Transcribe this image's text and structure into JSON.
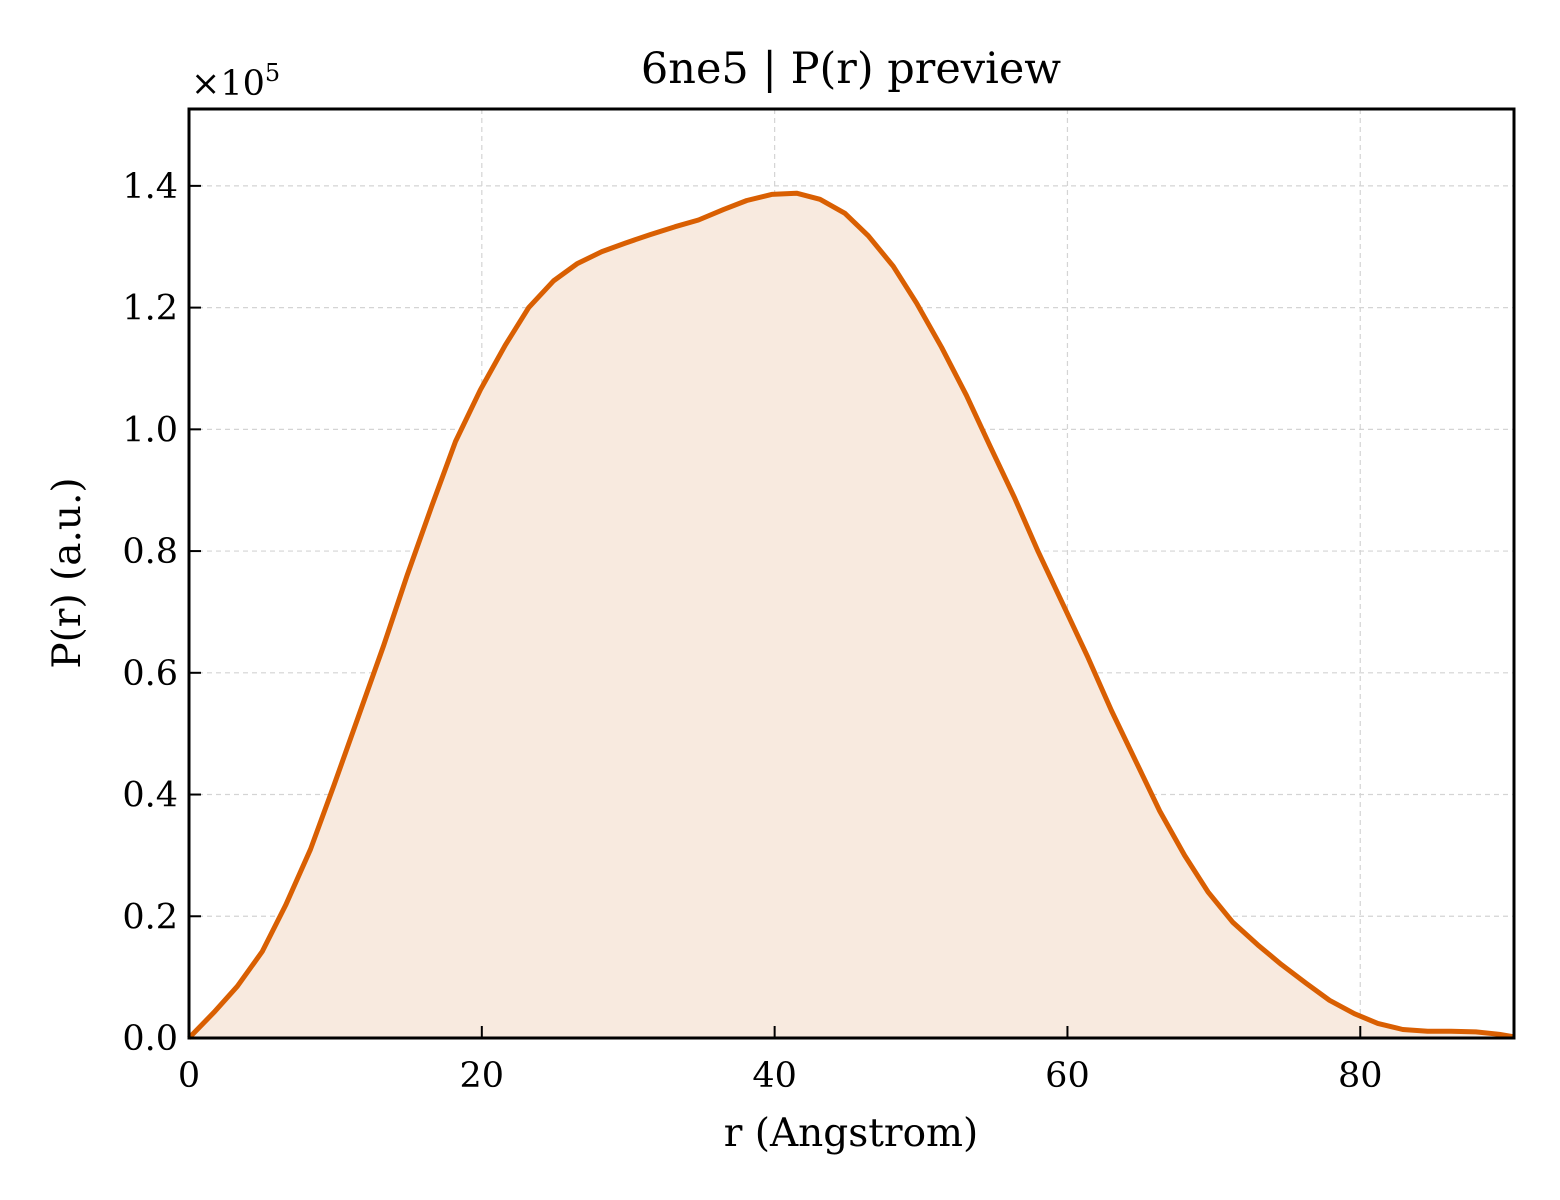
{
  "chart_data": {
    "type": "area",
    "title": "6ne5 | P(r) preview",
    "xlabel": "r (Angstrom)",
    "ylabel": "P(r) (a.u.)",
    "y_offset_label": "×10",
    "y_offset_exponent": "5",
    "xlim": [
      0,
      90.5
    ],
    "ylim": [
      0,
      1.5263
    ],
    "y_scale_factor": 100000,
    "xticks": [
      0,
      20,
      40,
      60,
      80
    ],
    "xtick_labels": [
      "0",
      "20",
      "40",
      "60",
      "80"
    ],
    "yticks": [
      0,
      0.2,
      0.4,
      0.6,
      0.8,
      1.0,
      1.2,
      1.4
    ],
    "ytick_labels": [
      "0.0",
      "0.2",
      "0.4",
      "0.6",
      "0.8",
      "1.0",
      "1.2",
      "1.4"
    ],
    "grid": true,
    "colors": {
      "line": "#d95f02",
      "fill": "#f8eadf",
      "grid": "#d4d4d4"
    },
    "series": [
      {
        "x": [
          0,
          1.7,
          3.3,
          5.0,
          6.6,
          8.3,
          9.9,
          11.6,
          13.3,
          14.9,
          16.6,
          18.2,
          19.9,
          21.6,
          23.2,
          24.9,
          26.5,
          28.2,
          29.8,
          31.5,
          33.2,
          34.8,
          36.5,
          38.1,
          39.8,
          41.5,
          43.1,
          44.8,
          46.4,
          48.1,
          49.7,
          51.4,
          53.1,
          54.7,
          56.4,
          58.0,
          59.7,
          61.4,
          63.0,
          64.7,
          66.3,
          68.0,
          69.6,
          71.3,
          73.0,
          74.6,
          76.3,
          77.9,
          79.6,
          81.2,
          82.9,
          84.6,
          86.2,
          87.9,
          89.5,
          90.5
        ],
        "y": [
          0,
          0.042,
          0.085,
          0.142,
          0.218,
          0.31,
          0.415,
          0.53,
          0.645,
          0.76,
          0.875,
          0.98,
          1.065,
          1.138,
          1.2,
          1.244,
          1.272,
          1.292,
          1.306,
          1.32,
          1.333,
          1.344,
          1.361,
          1.376,
          1.386,
          1.388,
          1.378,
          1.355,
          1.318,
          1.268,
          1.207,
          1.135,
          1.056,
          0.973,
          0.887,
          0.799,
          0.712,
          0.625,
          0.538,
          0.453,
          0.373,
          0.3,
          0.24,
          0.19,
          0.153,
          0.121,
          0.09,
          0.062,
          0.04,
          0.024,
          0.014,
          0.011,
          0.011,
          0.01,
          0.006,
          0.002
        ]
      }
    ]
  }
}
